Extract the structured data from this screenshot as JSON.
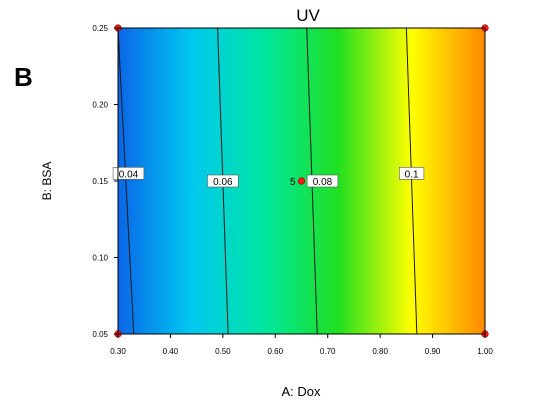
{
  "panel_label": "B",
  "chart_data": {
    "type": "contour",
    "title": "UV",
    "xlabel": "A: Dox",
    "ylabel": "B: BSA",
    "xlim": [
      0.3,
      1.0
    ],
    "ylim": [
      0.05,
      0.25
    ],
    "x_ticks": [
      0.3,
      0.4,
      0.5,
      0.6,
      0.7,
      0.8,
      0.9,
      1.0
    ],
    "x_tick_labels": [
      "0.30",
      "0.40",
      "0.50",
      "0.60",
      "0.70",
      "0.80",
      "0.90",
      "1.00"
    ],
    "y_ticks": [
      0.05,
      0.1,
      0.15,
      0.2,
      0.25
    ],
    "y_tick_labels": [
      "0.05",
      "0.10",
      "0.15",
      "0.20",
      "0.25"
    ],
    "grid": false,
    "colormap": [
      "#0a66e8",
      "#00c8f0",
      "#00e6a0",
      "#20e020",
      "#ffff00",
      "#ff8800"
    ],
    "contours": [
      {
        "label": "0.04",
        "x_bottom": 0.33,
        "x_top": 0.3,
        "label_position": [
          0.32,
          0.155
        ]
      },
      {
        "label": "0.06",
        "x_bottom": 0.51,
        "x_top": 0.49,
        "label_position": [
          0.5,
          0.15
        ]
      },
      {
        "label": "0.08",
        "x_bottom": 0.68,
        "x_top": 0.66,
        "label_position": [
          0.69,
          0.15
        ]
      },
      {
        "label": "0.1",
        "x_bottom": 0.87,
        "x_top": 0.85,
        "label_position": [
          0.86,
          0.155
        ]
      }
    ],
    "design_points": [
      {
        "x": 0.3,
        "y": 0.25
      },
      {
        "x": 1.0,
        "y": 0.25
      },
      {
        "x": 0.3,
        "y": 0.05
      },
      {
        "x": 1.0,
        "y": 0.05
      },
      {
        "x": 0.65,
        "y": 0.15,
        "label": "5"
      }
    ]
  }
}
